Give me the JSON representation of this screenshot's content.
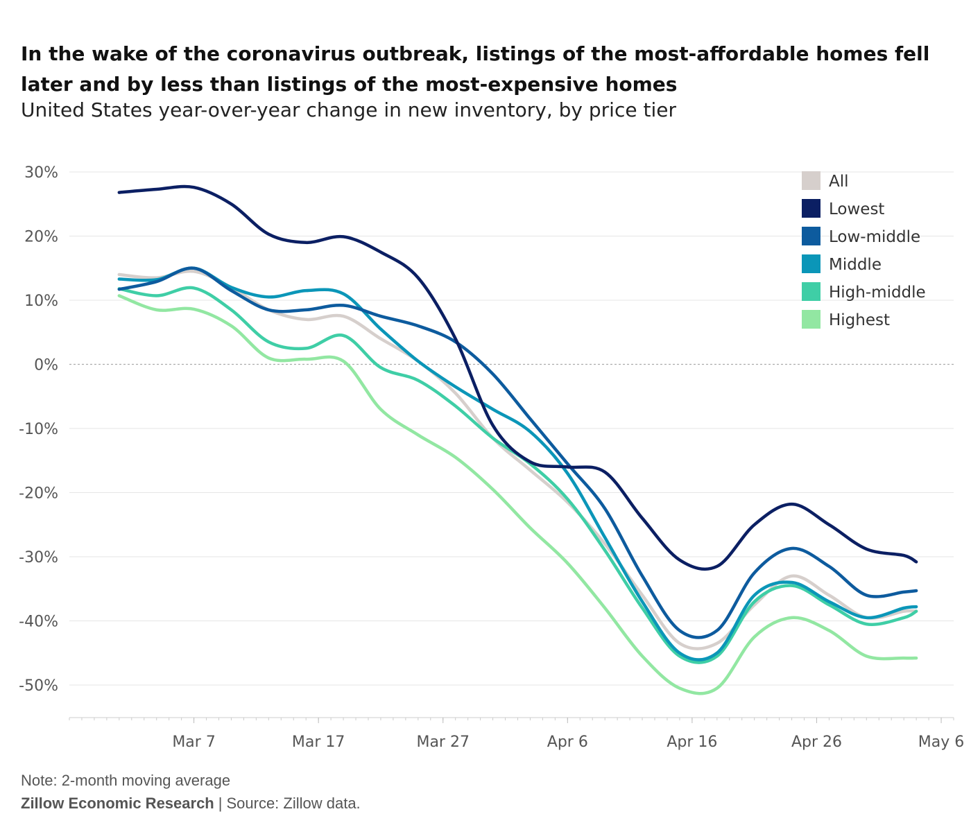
{
  "title": "In the wake of the coronavirus outbreak, listings of the most-affordable homes fell later and by less than listings of the most-expensive homes",
  "subtitle": "United States year-over-year change in new inventory, by price tier",
  "note": "Note: 2-month moving average",
  "source": {
    "org": "Zillow Economic Research",
    "separator": "|",
    "text": "Source: Zillow data."
  },
  "chart_data": {
    "type": "line",
    "x_domain": [
      "2020-02-26",
      "2020-05-07"
    ],
    "x": [
      "2020-03-01",
      "2020-03-04",
      "2020-03-07",
      "2020-03-10",
      "2020-03-13",
      "2020-03-16",
      "2020-03-19",
      "2020-03-22",
      "2020-03-25",
      "2020-03-28",
      "2020-03-31",
      "2020-04-03",
      "2020-04-06",
      "2020-04-09",
      "2020-04-12",
      "2020-04-15",
      "2020-04-18",
      "2020-04-21",
      "2020-04-24",
      "2020-04-27",
      "2020-04-30",
      "2020-05-03",
      "2020-05-04"
    ],
    "series": [
      {
        "name": "All",
        "color": "#d6cfcc",
        "values": [
          14.0,
          13.5,
          14.5,
          12.0,
          8.5,
          7.0,
          7.5,
          4.0,
          0.5,
          -4.5,
          -11.5,
          -16.5,
          -21.5,
          -28.0,
          -36.0,
          -43.5,
          -43.5,
          -37.5,
          -33.0,
          -36.0,
          -39.5,
          -38.5,
          -38.5
        ]
      },
      {
        "name": "Lowest",
        "color": "#0b1f63",
        "values": [
          26.8,
          27.3,
          27.6,
          25.0,
          20.3,
          19.0,
          19.9,
          17.5,
          13.5,
          4.0,
          -9.5,
          -15.2,
          -16.0,
          -16.8,
          -24.0,
          -30.5,
          -31.5,
          -25.0,
          -21.8,
          -25.0,
          -28.8,
          -29.8,
          -30.8
        ]
      },
      {
        "name": "Low-middle",
        "color": "#0d5b9e",
        "values": [
          11.7,
          12.9,
          15.0,
          11.5,
          8.5,
          8.5,
          9.2,
          7.5,
          6.0,
          3.5,
          -1.5,
          -8.5,
          -15.5,
          -22.5,
          -33.0,
          -41.5,
          -41.5,
          -32.5,
          -28.7,
          -31.5,
          -36.0,
          -35.5,
          -35.3
        ]
      },
      {
        "name": "Middle",
        "color": "#0b96b8",
        "values": [
          13.3,
          13.2,
          15.0,
          12.0,
          10.5,
          11.5,
          11.0,
          5.5,
          0.5,
          -3.5,
          -7.0,
          -10.5,
          -17.0,
          -27.0,
          -37.0,
          -45.0,
          -45.0,
          -36.0,
          -34.0,
          -37.0,
          -39.5,
          -38.0,
          -37.8
        ]
      },
      {
        "name": "High-middle",
        "color": "#3fcea6",
        "values": [
          11.8,
          10.7,
          11.9,
          8.5,
          3.5,
          2.5,
          4.5,
          -0.5,
          -2.5,
          -6.5,
          -11.5,
          -15.5,
          -21.0,
          -29.0,
          -38.0,
          -45.5,
          -45.5,
          -37.0,
          -34.5,
          -37.5,
          -40.5,
          -39.5,
          -38.5
        ]
      },
      {
        "name": "Highest",
        "color": "#92e7a2",
        "values": [
          10.7,
          8.5,
          8.6,
          6.0,
          1.0,
          0.8,
          0.5,
          -7.0,
          -11.0,
          -14.5,
          -19.5,
          -25.5,
          -31.0,
          -38.0,
          -45.5,
          -50.5,
          -50.5,
          -42.5,
          -39.5,
          -41.5,
          -45.5,
          -45.8,
          -45.8
        ]
      }
    ],
    "x_ticks": [
      {
        "date": "2020-03-07",
        "label": "Mar 7"
      },
      {
        "date": "2020-03-17",
        "label": "Mar 17"
      },
      {
        "date": "2020-03-27",
        "label": "Mar 27"
      },
      {
        "date": "2020-04-06",
        "label": "Apr 6"
      },
      {
        "date": "2020-04-16",
        "label": "Apr 16"
      },
      {
        "date": "2020-04-26",
        "label": "Apr 26"
      },
      {
        "date": "2020-05-06",
        "label": "May 6"
      }
    ],
    "y_ticks": [
      {
        "value": 30,
        "label": "30%"
      },
      {
        "value": 20,
        "label": "20%"
      },
      {
        "value": 10,
        "label": "10%"
      },
      {
        "value": 0,
        "label": "0%"
      },
      {
        "value": -10,
        "label": "-10%"
      },
      {
        "value": -20,
        "label": "-20%"
      },
      {
        "value": -30,
        "label": "-30%"
      },
      {
        "value": -40,
        "label": "-40%"
      },
      {
        "value": -50,
        "label": "-50%"
      }
    ],
    "ylim": [
      -55,
      32
    ],
    "xlabel": "",
    "ylabel": "",
    "grid": true,
    "zero_line": "dashed",
    "legend_position": "top-right"
  }
}
